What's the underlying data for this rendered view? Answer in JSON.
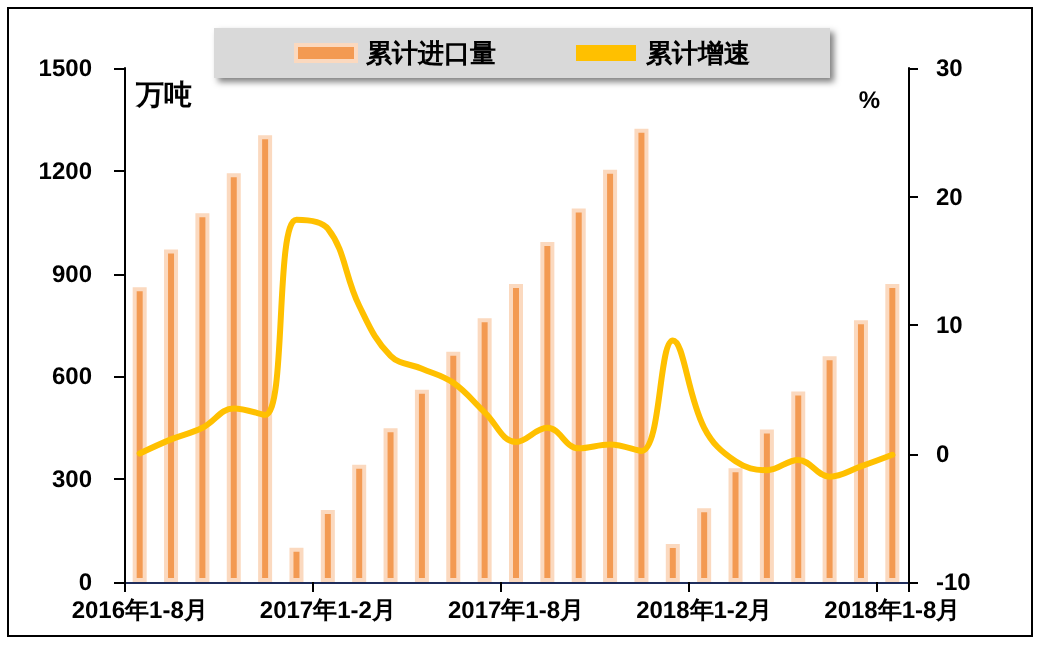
{
  "chart_data": {
    "type": "bar",
    "categories": [
      "2016年1-8月",
      null,
      null,
      null,
      null,
      null,
      "2017年1-2月",
      null,
      null,
      null,
      null,
      null,
      "2017年1-8月",
      null,
      null,
      null,
      null,
      null,
      "2018年1-2月",
      null,
      null,
      null,
      null,
      null,
      "2018年1-8月"
    ],
    "series": [
      {
        "name": "累计进口量",
        "color": "#f39a52",
        "values": [
          860,
          970,
          1076,
          1193,
          1304,
          100,
          210,
          342,
          449,
          561,
          672,
          770,
          870,
          992,
          1090,
          1203,
          1323,
          111,
          215,
          332,
          445,
          556,
          659,
          764,
          870
        ]
      },
      {
        "name": "累计增速",
        "type": "line",
        "axis": "y2",
        "color": "#ffc000",
        "values": [
          0,
          1.1,
          2,
          3.5,
          3,
          18.2,
          17.5,
          11.5,
          7.6,
          6.6,
          5.5,
          3.2,
          0.9,
          2,
          0.4,
          0.7,
          0.2,
          8.8,
          2,
          -0.6,
          -1.3,
          -0.5,
          -1.8,
          -1,
          -0.1
        ]
      }
    ],
    "ylabel": "万吨",
    "y2label": "%",
    "ylim": [
      0,
      1500
    ],
    "yticks": [
      0,
      300,
      600,
      900,
      1200,
      1500
    ],
    "y2lim": [
      -10,
      30
    ],
    "y2ticks": [
      -10,
      0,
      10,
      20,
      30
    ],
    "legend": "top",
    "grid": false,
    "marker": "none",
    "line_style": "solid"
  }
}
